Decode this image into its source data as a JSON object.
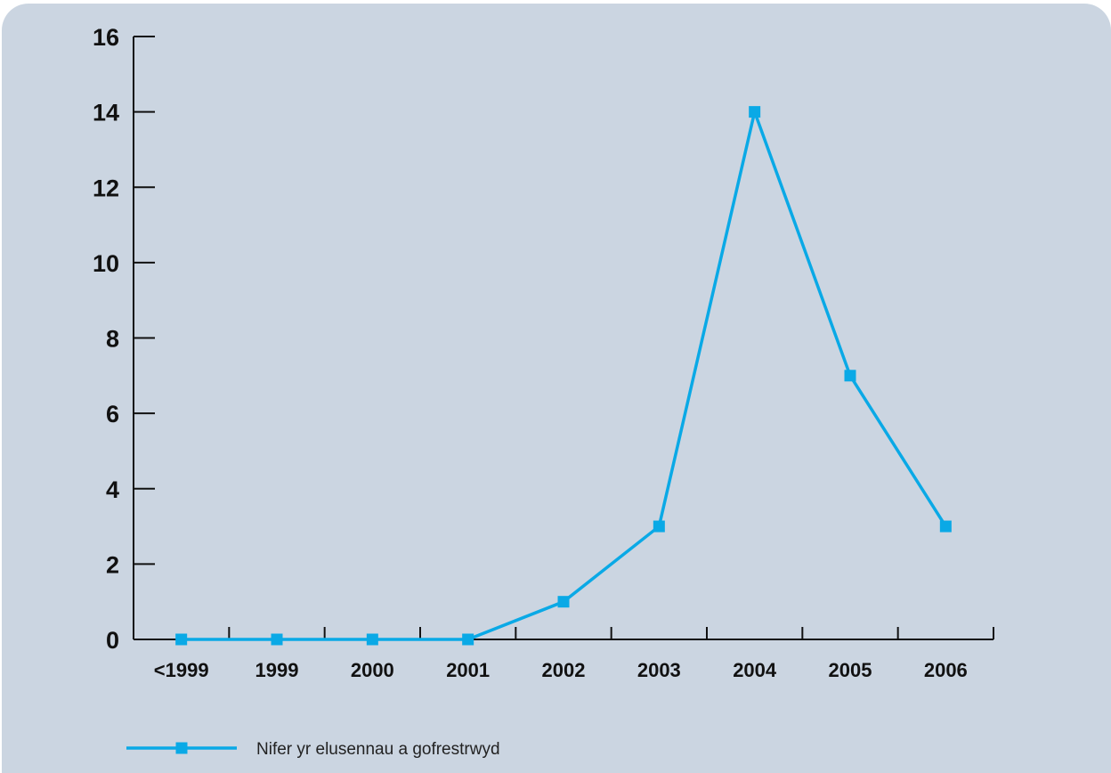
{
  "chart_data": {
    "type": "line",
    "title": "",
    "xlabel": "",
    "ylabel": "",
    "categories": [
      "<1999",
      "1999",
      "2000",
      "2001",
      "2002",
      "2003",
      "2004",
      "2005",
      "2006"
    ],
    "series": [
      {
        "name": "Nifer yr elusennau a gofrestrwyd",
        "values": [
          0,
          0,
          0,
          0,
          1,
          3,
          14,
          7,
          3
        ],
        "color": "#0aa9e6",
        "marker": "square"
      }
    ],
    "ylim": [
      0,
      16
    ],
    "yticks": [
      "0",
      "2",
      "4",
      "6",
      "8",
      "10",
      "12",
      "14",
      "16"
    ],
    "grid": false,
    "legend": "bottom-left",
    "background": "#cbd5e1"
  }
}
